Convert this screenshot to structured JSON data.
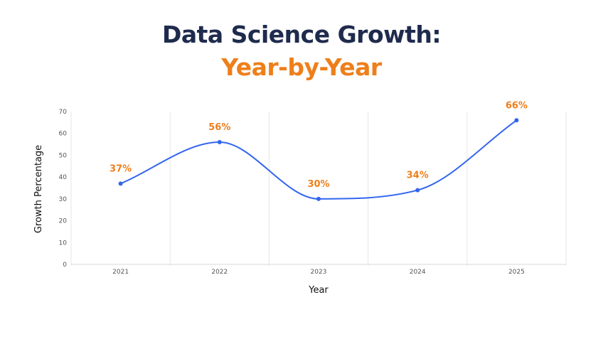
{
  "title": {
    "line1": "Data Science Growth:",
    "line2": "Year-by-Year"
  },
  "colors": {
    "title_primary": "#1f2b4d",
    "title_accent": "#ee7f1b",
    "line": "#3366ee",
    "data_label": "#ee7f1b",
    "grid": "#e6e6e6"
  },
  "chart_data": {
    "type": "line",
    "categories": [
      "2021",
      "2022",
      "2023",
      "2024",
      "2025"
    ],
    "values": [
      37,
      56,
      30,
      34,
      66
    ],
    "data_labels": [
      "37%",
      "56%",
      "30%",
      "34%",
      "66%"
    ],
    "xlabel": "Year",
    "ylabel": "Growth Percentage",
    "ylim": [
      0,
      70
    ],
    "yticks": [
      0,
      10,
      20,
      30,
      40,
      50,
      60,
      70
    ],
    "smooth": true,
    "grid": "vertical",
    "legend": "none"
  }
}
